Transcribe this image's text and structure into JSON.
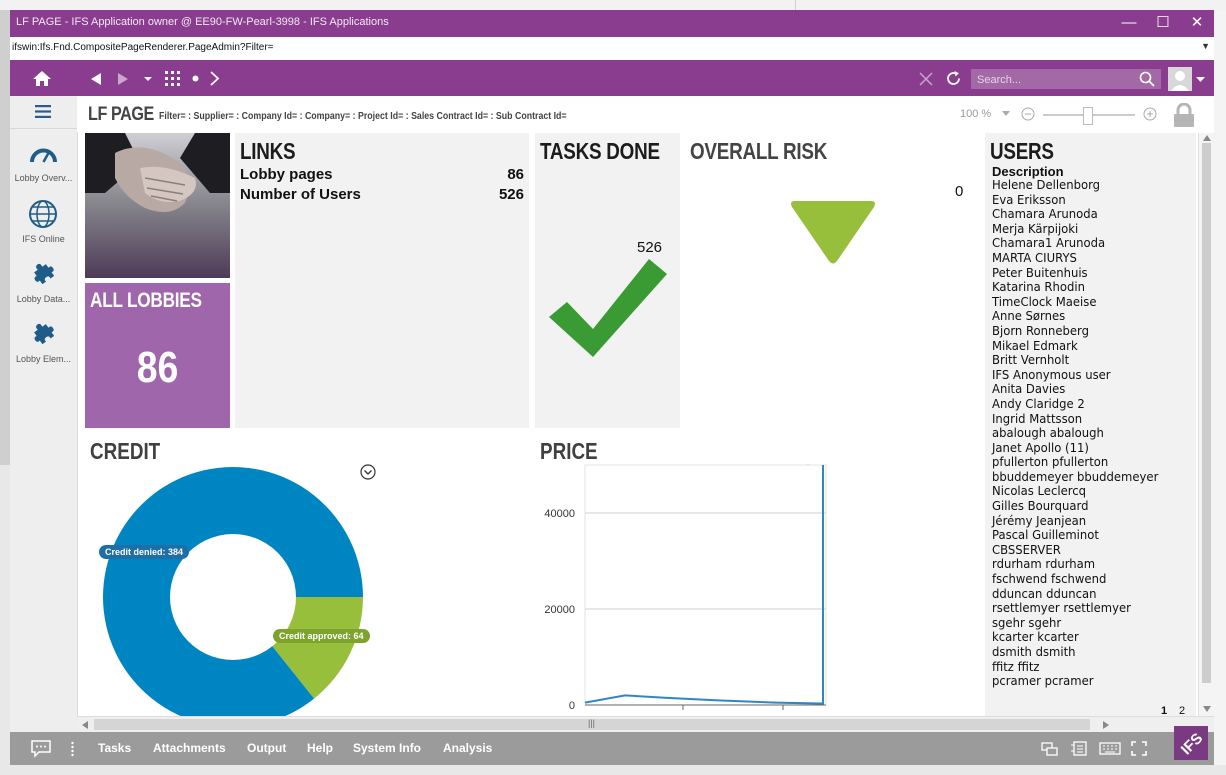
{
  "window": {
    "title": "LF PAGE  - IFS Application owner @ EE90-FW-Pearl-3998 - IFS Applications",
    "url": "ifswin:Ifs.Fnd.CompositePageRenderer.PageAdmin?Filter="
  },
  "search": {
    "placeholder": "Search..."
  },
  "sidebar": {
    "items": [
      {
        "label": "Lobby Overv...",
        "icon": "gauge-icon"
      },
      {
        "label": "IFS Online",
        "icon": "globe-icon"
      },
      {
        "label": "Lobby Data...",
        "icon": "puzzle-icon"
      },
      {
        "label": "Lobby Elem...",
        "icon": "puzzle-icon"
      }
    ]
  },
  "page": {
    "title": "LF PAGE",
    "filters": "Filter= : Supplier= : Company Id= : Company= : Project Id= : Sales Contract Id= : Sub Contract Id=",
    "zoom": "100 %"
  },
  "tiles": {
    "all_lobbies": {
      "title": "ALL LOBBIES",
      "value": "86"
    },
    "links": {
      "title": "LINKS",
      "rows": [
        {
          "label": "Lobby pages",
          "value": "86"
        },
        {
          "label": "Number of Users",
          "value": "526"
        }
      ]
    },
    "tasks_done": {
      "title": "TASKS DONE",
      "value": "526"
    },
    "overall_risk": {
      "title": "OVERALL RISK",
      "value": "0"
    },
    "users": {
      "title": "USERS",
      "column": "Description",
      "names": [
        "Helene Dellenborg",
        "Eva Eriksson",
        "Chamara Arunoda",
        "Merja Kärpijoki",
        "Chamara1 Arunoda",
        "MARTA CIURYS",
        "Peter Buitenhuis",
        "Katarina Rhodin",
        "TimeClock Maeise",
        "Anne Sørnes",
        "Bjorn Ronneberg",
        "Mikael Edmark",
        "Britt Vernholt",
        "IFS Anonymous user",
        "Anita Davies",
        "Andy Claridge 2",
        "Ingrid Mattsson",
        "abalough abalough",
        "Janet Apollo (11)",
        "pfullerton pfullerton",
        "bbuddemeyer bbuddemeyer",
        "Nicolas Leclercq",
        "Gilles Bourquard",
        "Jérémy Jeanjean",
        "Pascal Guilleminot",
        "CBSSERVER",
        "rdurham rdurham",
        "fschwend fschwend",
        "dduncan dduncan",
        "rsettlemyer rsettlemyer",
        "sgehr sgehr",
        "kcarter kcarter",
        "dsmith dsmith",
        "ffitz ffitz",
        "pcramer pcramer"
      ],
      "pages": [
        "1",
        "2"
      ]
    }
  },
  "credit": {
    "title": "CREDIT",
    "chart_data": {
      "type": "pie",
      "categories": [
        "Credit denied",
        "Credit approved"
      ],
      "values": [
        384,
        64
      ]
    },
    "labels": [
      "Credit denied: 384",
      "Credit approved: 64"
    ],
    "colors": [
      "#0085c3",
      "#97bf3c"
    ]
  },
  "price": {
    "title": "PRICE",
    "chart_data": {
      "type": "line",
      "yticks": [
        "0",
        "20000",
        "40000"
      ],
      "ylim": [
        0,
        50000
      ],
      "values": [
        500,
        2000,
        1500,
        1000,
        500,
        300,
        50000
      ]
    },
    "color": "#2e87c3"
  },
  "bottombar": {
    "items": [
      "Tasks",
      "Attachments",
      "Output",
      "Help",
      "System Info",
      "Analysis"
    ]
  },
  "colors": {
    "brand": "#8a3d8f",
    "tile": "#f2f2f2",
    "lobby_tile": "#a066ab",
    "risk": "#97bf3c",
    "check": "#3a9b35"
  }
}
